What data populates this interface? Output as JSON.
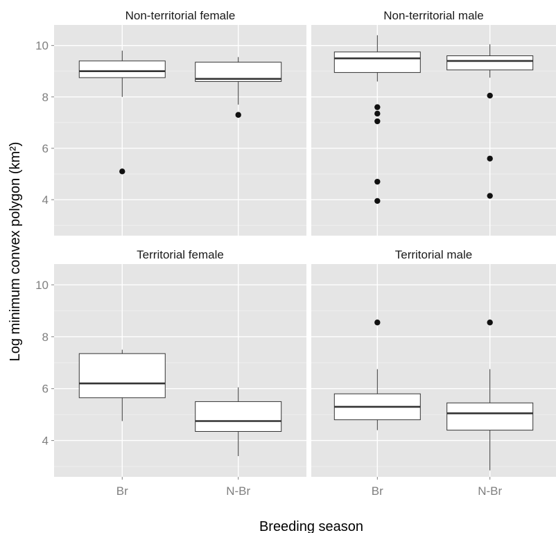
{
  "chart_data": {
    "type": "boxplot",
    "xlabel": "Breeding season",
    "ylabel": "Log minimum convex polygon (km²)",
    "categories": [
      "Br",
      "N-Br"
    ],
    "ylim": [
      2.6,
      10.8
    ],
    "yticks": [
      4,
      6,
      8,
      10
    ],
    "grid": true,
    "panels": [
      {
        "title": "Non-territorial female",
        "boxes": [
          {
            "category": "Br",
            "whisker_low": 8.0,
            "q1": 8.75,
            "median": 9.0,
            "q3": 9.4,
            "whisker_high": 9.8,
            "outliers": [
              5.1
            ]
          },
          {
            "category": "N-Br",
            "whisker_low": 7.7,
            "q1": 8.6,
            "median": 8.7,
            "q3": 9.35,
            "whisker_high": 9.55,
            "outliers": [
              7.3
            ]
          }
        ]
      },
      {
        "title": "Non-territorial male",
        "boxes": [
          {
            "category": "Br",
            "whisker_low": 8.6,
            "q1": 8.95,
            "median": 9.5,
            "q3": 9.75,
            "whisker_high": 10.4,
            "outliers": [
              7.6,
              7.35,
              7.05,
              4.7,
              3.95
            ]
          },
          {
            "category": "N-Br",
            "whisker_low": 8.75,
            "q1": 9.05,
            "median": 9.4,
            "q3": 9.6,
            "whisker_high": 10.05,
            "outliers": [
              8.05,
              5.6,
              4.15
            ]
          }
        ]
      },
      {
        "title": "Territorial female",
        "boxes": [
          {
            "category": "Br",
            "whisker_low": 4.75,
            "q1": 5.65,
            "median": 6.2,
            "q3": 7.35,
            "whisker_high": 7.5,
            "outliers": []
          },
          {
            "category": "N-Br",
            "whisker_low": 3.4,
            "q1": 4.35,
            "median": 4.75,
            "q3": 5.5,
            "whisker_high": 6.05,
            "outliers": []
          }
        ]
      },
      {
        "title": "Territorial male",
        "boxes": [
          {
            "category": "Br",
            "whisker_low": 4.4,
            "q1": 4.8,
            "median": 5.3,
            "q3": 5.8,
            "whisker_high": 6.75,
            "outliers": [
              8.55
            ]
          },
          {
            "category": "N-Br",
            "whisker_low": 2.85,
            "q1": 4.4,
            "median": 5.05,
            "q3": 5.45,
            "whisker_high": 6.75,
            "outliers": [
              8.55
            ]
          }
        ]
      }
    ]
  }
}
